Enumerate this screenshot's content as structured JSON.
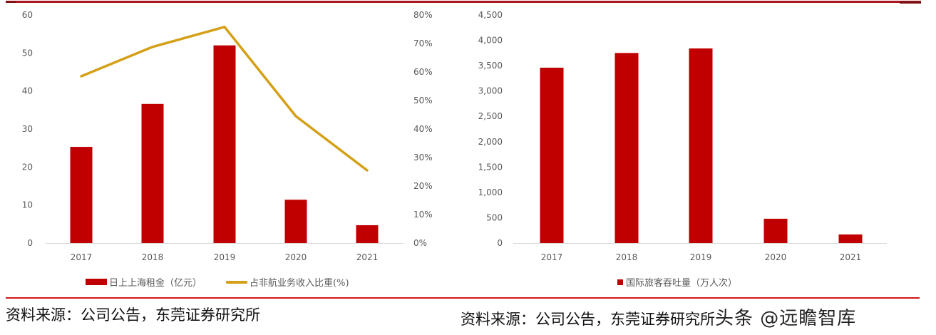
{
  "chart_data": [
    {
      "type": "bar+line",
      "title": "",
      "categories": [
        "2017",
        "2018",
        "2019",
        "2020",
        "2021"
      ],
      "series": [
        {
          "name": "日上上海租金（亿元）",
          "type": "bar",
          "axis": "left",
          "color": "#c00000",
          "values": [
            25.3,
            36.6,
            52.0,
            11.4,
            4.7
          ]
        },
        {
          "name": "占非航业务收入比重(%)",
          "type": "line",
          "axis": "right",
          "color": "#d4a017",
          "values": [
            58.5,
            68.8,
            75.8,
            44.5,
            25.5
          ]
        }
      ],
      "left_axis": {
        "ylim": [
          0,
          60
        ],
        "ticks": [
          "0",
          "10",
          "20",
          "30",
          "40",
          "50",
          "60"
        ]
      },
      "right_axis": {
        "ylim": [
          0,
          80
        ],
        "ticks": [
          "0%",
          "10%",
          "20%",
          "30%",
          "40%",
          "50%",
          "60%",
          "70%",
          "80%"
        ]
      },
      "xlabel": "",
      "ylabel": "",
      "grid": false,
      "legend_position": "bottom"
    },
    {
      "type": "bar",
      "title": "",
      "categories": [
        "2017",
        "2018",
        "2019",
        "2020",
        "2021"
      ],
      "series": [
        {
          "name": "国际旅客吞吐量（万人次）",
          "type": "bar",
          "color": "#c00000",
          "values": [
            3460,
            3750,
            3840,
            480,
            170
          ]
        }
      ],
      "ylim": [
        0,
        4500
      ],
      "ticks": [
        "0",
        "500",
        "1,000",
        "1,500",
        "2,000",
        "2,500",
        "3,000",
        "3,500",
        "4,000",
        "4,500"
      ],
      "xlabel": "",
      "ylabel": "",
      "grid": false,
      "legend_position": "bottom"
    }
  ],
  "left_chart": {
    "legend": {
      "bar_label": "日上上海租金（亿元）",
      "line_label": "占非航业务收入比重(%)"
    },
    "source": "资料来源：公司公告，东莞证券研究所"
  },
  "right_chart": {
    "legend": {
      "bar_label": "国际旅客吞吐量（万人次）"
    },
    "source": "资料来源：公司公告，东莞证券研究所"
  },
  "watermark": "头条 @远瞻智库"
}
